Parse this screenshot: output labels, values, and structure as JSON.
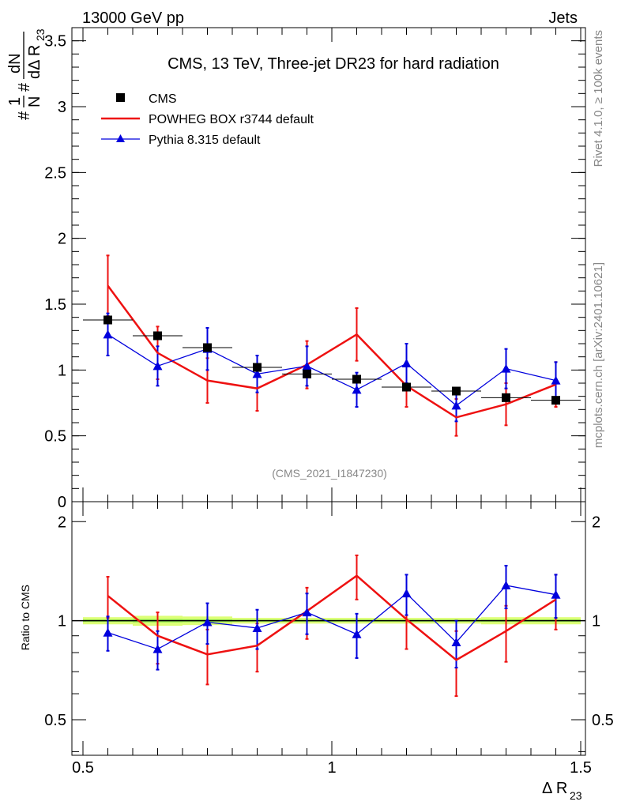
{
  "header": {
    "left": "13000 GeV pp",
    "right": "Jets"
  },
  "side": {
    "rivet": "Rivet 4.1.0, ≥ 100k events",
    "mcplots": "mcplots.cern.ch [arXiv:2401.10621]"
  },
  "chart_data": [
    {
      "type": "scatter",
      "title": "CMS, 13 TeV, Three-jet DR23 for hard radiation",
      "watermark": "(CMS_2021_I1847230)",
      "xlabel": "Δ R₂₃",
      "ylabel": "1/N dN/dΔ R₂₃",
      "ylabel_parts": {
        "n1": "1",
        "d1": "N",
        "n2": "dN",
        "d2": "dΔ R",
        "sub": "23"
      },
      "xlim": [
        0.5,
        1.5
      ],
      "ylim": [
        0,
        3.6
      ],
      "xticks": [
        0.5,
        1,
        1.5
      ],
      "xtick_labels": [
        "0.5",
        "1",
        "1.5"
      ],
      "yticks": [
        0,
        0.5,
        1,
        1.5,
        2,
        2.5,
        3,
        3.5
      ],
      "ytick_labels": [
        "0",
        "0.5",
        "1",
        "1.5",
        "2",
        "2.5",
        "3",
        "3.5"
      ],
      "legend_position": "top-left",
      "x": [
        0.55,
        0.65,
        0.75,
        0.85,
        0.95,
        1.05,
        1.15,
        1.25,
        1.35,
        1.45
      ],
      "series": [
        {
          "name": "CMS",
          "style": "square",
          "color": "#000000",
          "values": [
            1.38,
            1.26,
            1.17,
            1.02,
            0.97,
            0.93,
            0.87,
            0.84,
            0.79,
            0.77
          ],
          "errors": [
            0.03,
            0.03,
            0.03,
            0.02,
            0.02,
            0.02,
            0.02,
            0.02,
            0.02,
            0.02
          ]
        },
        {
          "name": "POWHEG BOX r3744 default",
          "style": "line",
          "color": "#ee1111",
          "values": [
            1.64,
            1.13,
            0.92,
            0.86,
            1.04,
            1.27,
            0.88,
            0.64,
            0.74,
            0.89
          ],
          "errors": [
            0.23,
            0.2,
            0.17,
            0.17,
            0.18,
            0.2,
            0.16,
            0.14,
            0.16,
            0.17
          ]
        },
        {
          "name": "Pythia 8.315 default",
          "style": "triangle",
          "color": "#0000dd",
          "values": [
            1.27,
            1.03,
            1.16,
            0.97,
            1.03,
            0.85,
            1.05,
            0.73,
            1.01,
            0.92
          ],
          "errors": [
            0.16,
            0.15,
            0.16,
            0.14,
            0.15,
            0.13,
            0.15,
            0.12,
            0.15,
            0.14
          ]
        }
      ]
    },
    {
      "type": "scatter",
      "title": "",
      "xlabel": "Δ R₂₃",
      "ylabel": "Ratio to CMS",
      "xlim": [
        0.5,
        1.5
      ],
      "ylim": [
        0.39,
        2.3
      ],
      "scale": "log",
      "yticks": [
        0.5,
        1,
        2
      ],
      "ytick_labels": [
        "0.5",
        "1",
        "2"
      ],
      "x": [
        0.55,
        0.65,
        0.75,
        0.85,
        0.95,
        1.05,
        1.15,
        1.25,
        1.35,
        1.45
      ],
      "band": {
        "color": "#ddff77",
        "inner_color": "#99ee55",
        "values": [
          0.025,
          0.035,
          0.03,
          0.02,
          0.02,
          0.02,
          0.02,
          0.02,
          0.025,
          0.025
        ]
      },
      "reference_line": 1,
      "series": [
        {
          "name": "POWHEG BOX r3744 default",
          "style": "line",
          "color": "#ee1111",
          "values": [
            1.19,
            0.9,
            0.79,
            0.84,
            1.07,
            1.37,
            1.01,
            0.76,
            0.93,
            1.16
          ],
          "errors": [
            0.17,
            0.16,
            0.15,
            0.14,
            0.19,
            0.21,
            0.19,
            0.17,
            0.18,
            0.22
          ]
        },
        {
          "name": "Pythia 8.315 default",
          "style": "triangle",
          "color": "#0000dd",
          "values": [
            0.92,
            0.82,
            0.99,
            0.95,
            1.06,
            0.91,
            1.21,
            0.86,
            1.28,
            1.2
          ],
          "errors": [
            0.11,
            0.11,
            0.14,
            0.13,
            0.15,
            0.14,
            0.17,
            0.14,
            0.19,
            0.18
          ]
        }
      ]
    }
  ]
}
